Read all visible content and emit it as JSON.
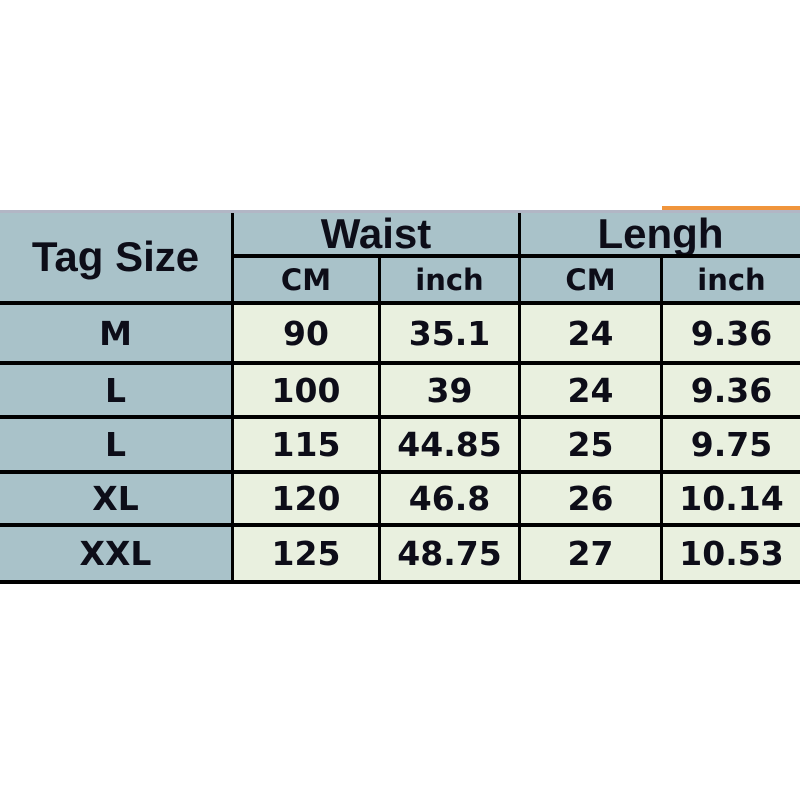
{
  "table": {
    "corner_header": "Tag Size",
    "column_groups": [
      {
        "label": "Waist",
        "subcolumns": [
          "CM",
          "inch"
        ]
      },
      {
        "label": "Lengh",
        "subcolumns": [
          "CM",
          "inch"
        ]
      }
    ],
    "rows": [
      {
        "size": "M",
        "waist_cm": "90",
        "waist_inch": "35.1",
        "length_cm": "24",
        "length_inch": "9.36"
      },
      {
        "size": "L",
        "waist_cm": "100",
        "waist_inch": "39",
        "length_cm": "24",
        "length_inch": "9.36"
      },
      {
        "size": "L",
        "waist_cm": "115",
        "waist_inch": "44.85",
        "length_cm": "25",
        "length_inch": "9.75"
      },
      {
        "size": "XL",
        "waist_cm": "120",
        "waist_inch": "46.8",
        "length_cm": "26",
        "length_inch": "10.14"
      },
      {
        "size": "XXL",
        "waist_cm": "125",
        "waist_inch": "48.75",
        "length_cm": "27",
        "length_inch": "10.53"
      }
    ],
    "colors": {
      "header_bg": "#a9c2c9",
      "value_bg": "#e9f0df",
      "border": "#000000",
      "top_edge_line": "#b2b6c5",
      "accent_bar": "#f0953c",
      "text": "#0d0d18"
    }
  }
}
